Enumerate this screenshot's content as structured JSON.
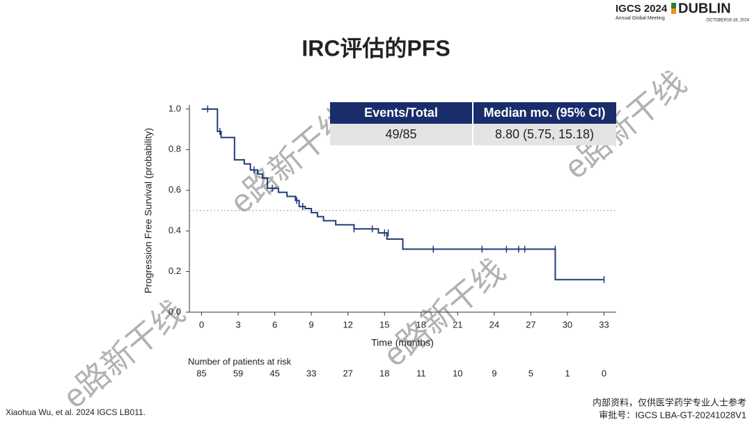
{
  "slide": {
    "title": "IRC评估的PFS",
    "logo": {
      "event": "IGCS 2024",
      "meeting": "Annual Global Meeting",
      "city": "DUBLIN",
      "dates": "OCTOBER16-18, 2024"
    },
    "citation": "Xiaohua Wu, et al. 2024 IGCS LB011.",
    "notice": "内部资料，仅供医学药学专业人士参考",
    "approval": "审批号：IGCS LBA-GT-20241028V1",
    "watermark": "e路新干线"
  },
  "table": {
    "header": [
      "Events/Total",
      "Median mo. (95% CI)"
    ],
    "rows": [
      [
        "49/85",
        "8.80 (5.75, 15.18)"
      ]
    ]
  },
  "chart_data": {
    "type": "step",
    "x_label": "Time (months)",
    "y_label": "Progression Free Survival (probability)",
    "color": "#1f3a78",
    "x": [
      0,
      1.3,
      1.6,
      2.7,
      3.5,
      4.0,
      4.6,
      5.0,
      5.4,
      6.3,
      7.0,
      7.7,
      8.0,
      8.5,
      9.0,
      9.5,
      10.0,
      11.0,
      12.5,
      14.5,
      15.2,
      16.5,
      29.0,
      33
    ],
    "values": [
      1.0,
      0.89,
      0.86,
      0.75,
      0.73,
      0.7,
      0.68,
      0.66,
      0.61,
      0.59,
      0.57,
      0.55,
      0.52,
      0.51,
      0.49,
      0.47,
      0.45,
      0.43,
      0.41,
      0.39,
      0.36,
      0.31,
      0.16,
      0.16
    ],
    "censored": {
      "x": [
        0.5,
        1.5,
        4.3,
        5.8,
        7.8,
        8.3,
        12.5,
        14.0,
        15.0,
        15.3,
        16.5,
        19,
        23,
        25,
        26,
        26.5,
        29,
        33
      ],
      "values": [
        1.0,
        0.89,
        0.7,
        0.61,
        0.55,
        0.52,
        0.41,
        0.41,
        0.39,
        0.39,
        0.34,
        0.31,
        0.31,
        0.31,
        0.31,
        0.31,
        0.31,
        0.16
      ]
    },
    "reference_line": 0.5,
    "xlim": [
      -1,
      34
    ],
    "ylim": [
      0,
      1.02
    ],
    "xticks": [
      0,
      3,
      6,
      9,
      12,
      15,
      18,
      21,
      24,
      27,
      30,
      33
    ],
    "yticks": [
      {
        "value": 0,
        "label": "0.0"
      },
      0.2,
      0.4,
      0.6,
      0.8,
      {
        "value": 1,
        "label": "1.0"
      }
    ],
    "risk_title": "Number of patients at risk",
    "at_risk": [
      85,
      59,
      45,
      33,
      27,
      18,
      11,
      10,
      9,
      5,
      1,
      0
    ]
  }
}
